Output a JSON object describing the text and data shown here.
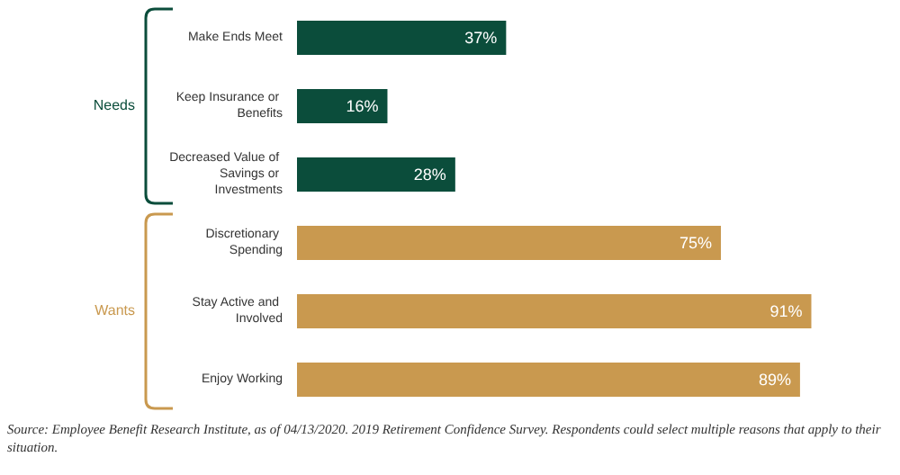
{
  "chart_data": {
    "type": "bar",
    "orientation": "horizontal",
    "categories": [
      "Make Ends Meet",
      "Keep Insurance or Benefits",
      "Decreased Value of Savings or Investments",
      "Discretionary Spending",
      "Stay Active and Involved",
      "Enjoy Working"
    ],
    "values": [
      37,
      16,
      28,
      75,
      91,
      89
    ],
    "colors": [
      "#0b4d3b",
      "#0b4d3b",
      "#0b4d3b",
      "#c9994f",
      "#c9994f",
      "#c9994f"
    ],
    "value_labels": [
      "37%",
      "16%",
      "28%",
      "75%",
      "91%",
      "89%"
    ],
    "annotations": [
      "Needs",
      "Wants",
      "Source: Employee Benefit Research Institute, as of 04/13/2020. 2019 Retirement Confidence Survey. Respondents could select multiple reasons that apply to their situation."
    ]
  }
}
